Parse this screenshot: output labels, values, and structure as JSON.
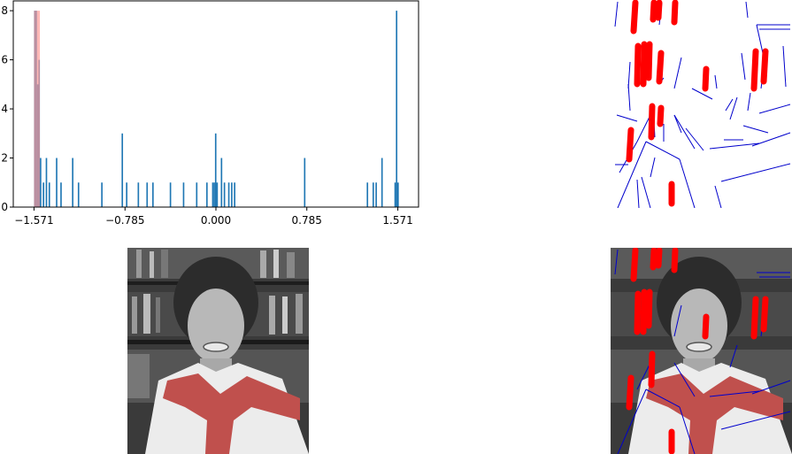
{
  "chart_data": [
    {
      "type": "bar",
      "title": "",
      "xlabel": "",
      "ylabel": "",
      "xlim": [
        -1.75,
        1.75
      ],
      "ylim": [
        0,
        8.4
      ],
      "x_ticks": [
        -1.571,
        -0.785,
        0.0,
        0.785,
        1.571
      ],
      "x_tick_labels": [
        "−1.571",
        "−0.785",
        "0.000",
        "0.785",
        "1.571"
      ],
      "y_ticks": [
        0,
        2,
        4,
        6,
        8
      ],
      "y_tick_labels": [
        "0",
        "2",
        "4",
        "6",
        "8"
      ],
      "grid": false,
      "series": [
        {
          "color": "#1f77b4",
          "bin_width": 0.0126,
          "bins": [
            {
              "x": -1.5644,
              "y": 8
            },
            {
              "x": -1.5518,
              "y": 8
            },
            {
              "x": -1.5392,
              "y": 5
            },
            {
              "x": -1.5266,
              "y": 6
            },
            {
              "x": -1.514,
              "y": 2
            },
            {
              "x": -1.4888,
              "y": 1
            },
            {
              "x": -1.4636,
              "y": 2
            },
            {
              "x": -1.4384,
              "y": 1
            },
            {
              "x": -1.3754,
              "y": 2
            },
            {
              "x": -1.3376,
              "y": 1
            },
            {
              "x": -1.2368,
              "y": 2
            },
            {
              "x": -1.1864,
              "y": 1
            },
            {
              "x": -0.9848,
              "y": 1
            },
            {
              "x": -0.8084,
              "y": 3
            },
            {
              "x": -0.7706,
              "y": 1
            },
            {
              "x": -0.6698,
              "y": 1
            },
            {
              "x": -0.5942,
              "y": 1
            },
            {
              "x": -0.5438,
              "y": 1
            },
            {
              "x": -0.3926,
              "y": 1
            },
            {
              "x": -0.2792,
              "y": 1
            },
            {
              "x": -0.1658,
              "y": 1
            },
            {
              "x": -0.0776,
              "y": 1
            },
            {
              "x": -0.0272,
              "y": 1
            },
            {
              "x": -0.0146,
              "y": 1
            },
            {
              "x": -0.002,
              "y": 3
            },
            {
              "x": 0.0106,
              "y": 1
            },
            {
              "x": 0.0484,
              "y": 2
            },
            {
              "x": 0.0736,
              "y": 1
            },
            {
              "x": 0.1114,
              "y": 1
            },
            {
              "x": 0.1366,
              "y": 1
            },
            {
              "x": 0.1618,
              "y": 1
            },
            {
              "x": 0.7666,
              "y": 2
            },
            {
              "x": 1.3084,
              "y": 1
            },
            {
              "x": 1.3588,
              "y": 1
            },
            {
              "x": 1.384,
              "y": 1
            },
            {
              "x": 1.4344,
              "y": 2
            },
            {
              "x": 1.5478,
              "y": 1
            },
            {
              "x": 1.5604,
              "y": 8
            },
            {
              "x": 1.573,
              "y": 1
            }
          ]
        },
        {
          "color": "#ff9896",
          "opacity": 0.7,
          "bin_width": 0.0126,
          "bins": [
            {
              "x": -1.5644,
              "y": 8
            },
            {
              "x": -1.5518,
              "y": 8
            },
            {
              "x": -1.5392,
              "y": 8
            },
            {
              "x": -1.5266,
              "y": 8
            }
          ]
        }
      ]
    }
  ],
  "panels": {
    "lines_image": {
      "line_color": "#0000cc",
      "mark_color": "#ff0000",
      "background": "#ffffff"
    },
    "photo": {
      "background": "#3a3a3a",
      "scarf_color": "#c0504d"
    },
    "overlay_image": {
      "line_color": "#0000cc",
      "mark_color": "#ff0000"
    }
  }
}
